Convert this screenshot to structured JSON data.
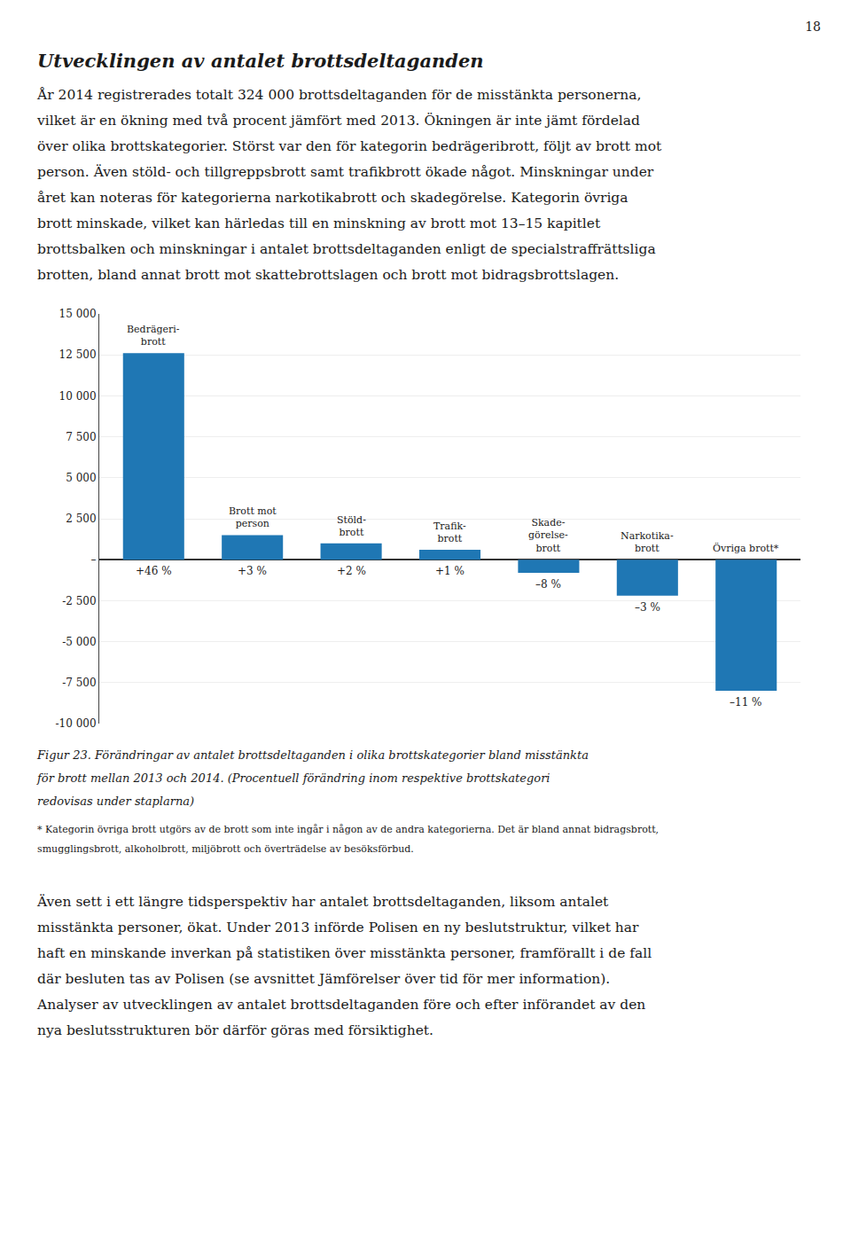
{
  "page_number": "18",
  "heading": "Utvecklingen av antalet brottsdeltaganden",
  "intro_lines": [
    "År 2014 registrerades totalt 324 000 brottsdeltaganden för de misstänkta personerna,",
    "vilket är en ökning med två procent jämfört med 2013. Ökningen är inte jämt fördelad",
    "över olika brottskategorier. Störst var den för kategorin bedrägeribrott, följt av brott mot",
    "person. Även stöld- och tillgreppsbrott samt trafikbrott ökade något. Minskningar under",
    "året kan noteras för kategorierna narkotikabrott och skadegörelse. Kategorin övriga",
    "brott minskade, vilket kan härledas till en minskning av brott mot 13–15 kapitlet",
    "brottsbalken och minskningar i antalet brottsdeltaganden enligt de specialstraffrättsliga",
    "brotten, bland annat brott mot skattebrottslagen och brott mot bidragsbrottslagen."
  ],
  "chart_data": {
    "type": "bar",
    "categories": [
      "Bedrägeri-\nbrott",
      "Brott mot\nperson",
      "Stöld-\nbrott",
      "Trafik-\nbrott",
      "Skade-\ngörelse-\nbrott",
      "Narkotika-\nbrott",
      "Övriga brott*"
    ],
    "values": [
      12600,
      1500,
      1000,
      600,
      -800,
      -2200,
      -8000
    ],
    "annotations": [
      "+46 %",
      "+3 %",
      "+2 %",
      "+1 %",
      "–8 %",
      "–3 %",
      "–11 %"
    ],
    "ylim": [
      -10000,
      15000
    ],
    "yticks": [
      {
        "value": -10000,
        "label": "-10 000"
      },
      {
        "value": -7500,
        "label": "-7 500"
      },
      {
        "value": -5000,
        "label": "-5 000"
      },
      {
        "value": -2500,
        "label": "-2 500"
      },
      {
        "value": 0,
        "label": "–"
      },
      {
        "value": 2500,
        "label": "2 500"
      },
      {
        "value": 5000,
        "label": "5 000"
      },
      {
        "value": 7500,
        "label": "7 500"
      },
      {
        "value": 10000,
        "label": "10 000"
      },
      {
        "value": 12500,
        "label": "12 500"
      },
      {
        "value": 15000,
        "label": "15 000"
      }
    ],
    "grid": true,
    "tick_labels": "y"
  },
  "caption_lines": [
    "Figur 23. Förändringar av antalet brottsdeltaganden i olika brottskategorier bland misstänkta",
    "för brott mellan 2013 och 2014. (Procentuell förändring inom respektive brottskategori",
    "redovisas under staplarna)"
  ],
  "footnote_lines": [
    "* Kategorin övriga brott utgörs av de brott som inte ingår i någon av de andra kategorierna. Det är bland annat bidragsbrott,",
    "smugglingsbrott, alkoholbrott, miljöbrott och överträdelse av besöksförbud."
  ],
  "body_lines": [
    "Även sett i ett längre tidsperspektiv har antalet brottsdeltaganden, liksom antalet",
    "misstänkta personer, ökat. Under 2013 införde Polisen en ny beslutstruktur, vilket har",
    "haft en minskande inverkan på statistiken över misstänkta personer, framförallt i de fall",
    "där besluten tas av Polisen (se avsnittet Jämförelser över tid för mer information).",
    "Analyser av utvecklingen av antalet brottsdeltaganden före och efter införandet av den",
    "nya beslutsstrukturen bör därför göras med försiktighet."
  ]
}
